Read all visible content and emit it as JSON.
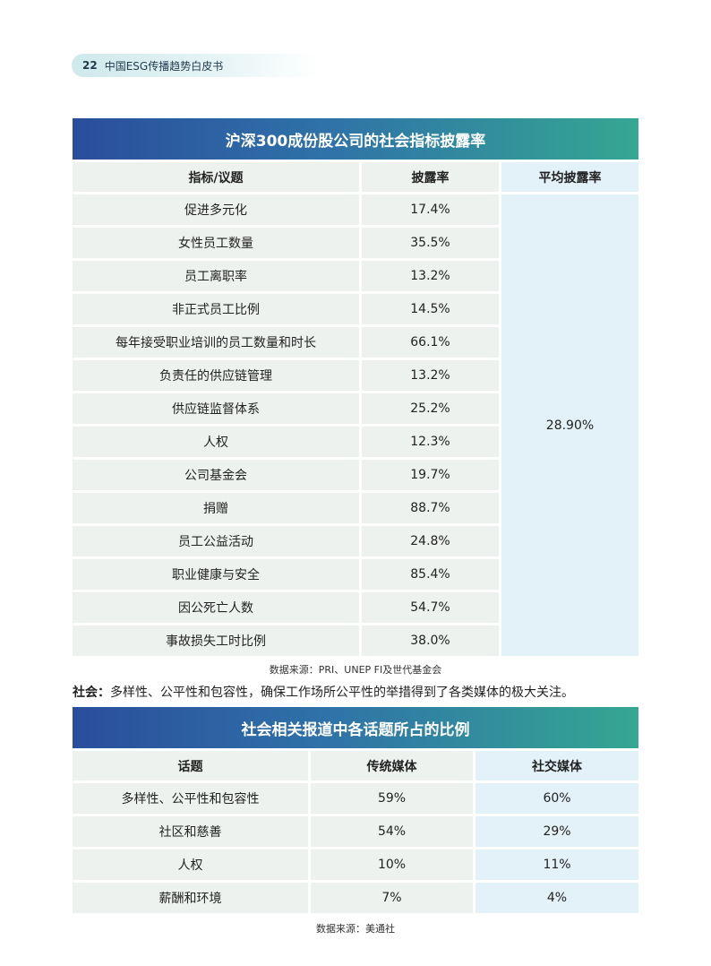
{
  "header": {
    "page_number": "22",
    "title": "中国ESG传播趋势白皮书"
  },
  "table1": {
    "title": "沪深300成份股公司的社会指标披露率",
    "columns": [
      "指标/议题",
      "披露率",
      "平均披露率"
    ],
    "rows": [
      {
        "topic": "促进多元化",
        "rate": "17.4%"
      },
      {
        "topic": "女性员工数量",
        "rate": "35.5%"
      },
      {
        "topic": "员工离职率",
        "rate": "13.2%"
      },
      {
        "topic": "非正式员工比例",
        "rate": "14.5%"
      },
      {
        "topic": "每年接受职业培训的员工数量和时长",
        "rate": "66.1%"
      },
      {
        "topic": "负责任的供应链管理",
        "rate": "13.2%"
      },
      {
        "topic": "供应链监督体系",
        "rate": "25.2%"
      },
      {
        "topic": "人权",
        "rate": "12.3%"
      },
      {
        "topic": "公司基金会",
        "rate": "19.7%"
      },
      {
        "topic": "捐赠",
        "rate": "88.7%"
      },
      {
        "topic": "员工公益活动",
        "rate": "24.8%"
      },
      {
        "topic": "职业健康与安全",
        "rate": "85.4%"
      },
      {
        "topic": "因公死亡人数",
        "rate": "54.7%"
      },
      {
        "topic": "事故损失工时比例",
        "rate": "38.0%"
      }
    ],
    "average": "28.90%",
    "source": "数据来源：PRI、UNEP FI及世代基金会"
  },
  "social_note": {
    "label": "社会：",
    "text": "多样性、公平性和包容性，确保工作场所公平性的举措得到了各类媒体的极大关注。"
  },
  "table2": {
    "title": "社会相关报道中各话题所占的比例",
    "columns": [
      "话题",
      "传统媒体",
      "社交媒体"
    ],
    "rows": [
      {
        "topic": "多样性、公平性和包容性",
        "traditional": "59%",
        "social": "60%"
      },
      {
        "topic": "社区和慈善",
        "traditional": "54%",
        "social": "29%"
      },
      {
        "topic": "人权",
        "traditional": "10%",
        "social": "11%"
      },
      {
        "topic": "薪酬和环境",
        "traditional": "7%",
        "social": "4%"
      }
    ],
    "source": "数据来源：美通社"
  }
}
